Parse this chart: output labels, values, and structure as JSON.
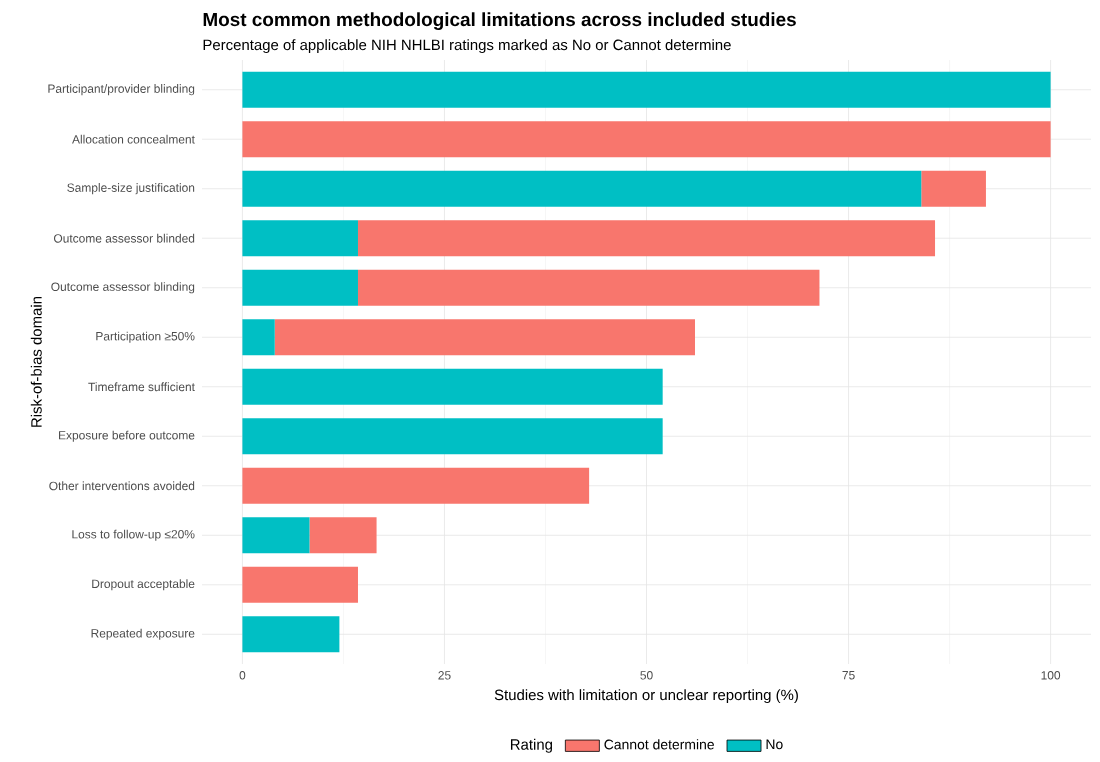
{
  "chart_data": {
    "type": "bar",
    "orientation": "horizontal",
    "stacked": true,
    "title": "Most common methodological limitations across included studies",
    "subtitle": "Percentage of applicable NIH NHLBI ratings marked as No or Cannot determine",
    "xlabel": "Studies with limitation or unclear reporting (%)",
    "ylabel": "Risk-of-bias domain",
    "legend_title": "Rating",
    "categories": [
      "Participant/provider blinding",
      "Allocation concealment",
      "Sample-size justification",
      "Outcome assessor blinded",
      "Outcome assessor blinding",
      "Participation ≥50%",
      "Timeframe sufficient",
      "Exposure before outcome",
      "Other interventions avoided",
      "Loss to follow-up ≤20%",
      "Dropout acceptable",
      "Repeated exposure"
    ],
    "series": [
      {
        "name": "No",
        "color": "#00bfc4",
        "values": [
          100,
          0,
          84,
          14.3,
          14.3,
          4,
          52,
          52,
          0,
          8.3,
          0,
          12
        ]
      },
      {
        "name": "Cannot determine",
        "color": "#f8766d",
        "values": [
          0,
          100,
          8,
          71.4,
          57.1,
          52,
          0,
          0,
          42.9,
          8.3,
          14.3,
          0
        ]
      }
    ],
    "xlim": [
      -5,
      105
    ],
    "xticks": [
      0,
      25,
      50,
      75,
      100
    ],
    "grid": true,
    "legend": "bottom"
  }
}
